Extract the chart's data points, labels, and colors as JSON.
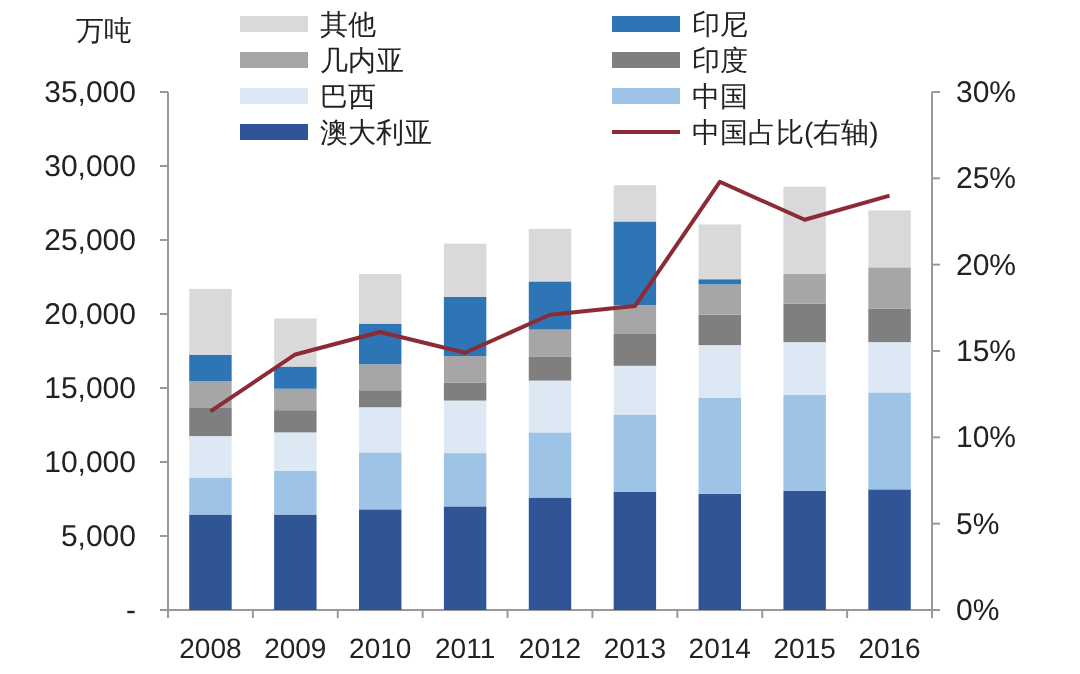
{
  "chart_data": {
    "type": "bar",
    "stacked": true,
    "ylabel": "万吨",
    "legend": "top",
    "grid": false,
    "categories": [
      "2008",
      "2009",
      "2010",
      "2011",
      "2012",
      "2013",
      "2014",
      "2015",
      "2016"
    ],
    "ylim": [
      0,
      35000
    ],
    "yticks": [
      {
        "value": 0,
        "label": "-"
      },
      {
        "value": 5000,
        "label": "5,000"
      },
      {
        "value": 10000,
        "label": "10,000"
      },
      {
        "value": 15000,
        "label": "15,000"
      },
      {
        "value": 20000,
        "label": "20,000"
      },
      {
        "value": 25000,
        "label": "25,000"
      },
      {
        "value": 30000,
        "label": "30,000"
      },
      {
        "value": 35000,
        "label": "35,000"
      }
    ],
    "y2lim": [
      0,
      30
    ],
    "y2ticks": [
      {
        "value": 0,
        "label": "0%"
      },
      {
        "value": 5,
        "label": "5%"
      },
      {
        "value": 10,
        "label": "10%"
      },
      {
        "value": 15,
        "label": "15%"
      },
      {
        "value": 20,
        "label": "20%"
      },
      {
        "value": 25,
        "label": "25%"
      },
      {
        "value": 30,
        "label": "30%"
      }
    ],
    "series": [
      {
        "name": "澳大利亚",
        "color": "#2f5597",
        "values": [
          6450,
          6450,
          6800,
          7000,
          7600,
          8000,
          7850,
          8050,
          8150
        ]
      },
      {
        "name": "中国",
        "color": "#9dc3e6",
        "values": [
          2500,
          2950,
          3850,
          3600,
          4400,
          5200,
          6500,
          6500,
          6550
        ]
      },
      {
        "name": "巴西",
        "color": "#dde8f5",
        "values": [
          2800,
          2600,
          3050,
          3550,
          3500,
          3300,
          3550,
          3550,
          3400
        ]
      },
      {
        "name": "印度",
        "color": "#7f7f7f",
        "values": [
          1900,
          1500,
          1150,
          1200,
          1600,
          2150,
          2050,
          2600,
          2250
        ]
      },
      {
        "name": "几内亚",
        "color": "#a6a6a6",
        "values": [
          1800,
          1450,
          1750,
          1800,
          1850,
          1950,
          2050,
          2000,
          2800
        ]
      },
      {
        "name": "印尼",
        "color": "#2e75b6",
        "values": [
          1800,
          1500,
          2750,
          4000,
          3250,
          5650,
          350,
          null,
          null
        ]
      },
      {
        "name": "其他",
        "color": "#d9d9d9",
        "values": [
          4450,
          3250,
          3350,
          3600,
          3550,
          2450,
          3700,
          5900,
          3850
        ]
      },
      {
        "name": "中国占比(右轴)",
        "type": "line",
        "axis": "y2",
        "color": "#8b2b35",
        "marker": "none",
        "values": [
          11.5,
          14.8,
          16.1,
          14.9,
          17.1,
          17.6,
          24.8,
          22.6,
          24.0
        ]
      }
    ]
  }
}
